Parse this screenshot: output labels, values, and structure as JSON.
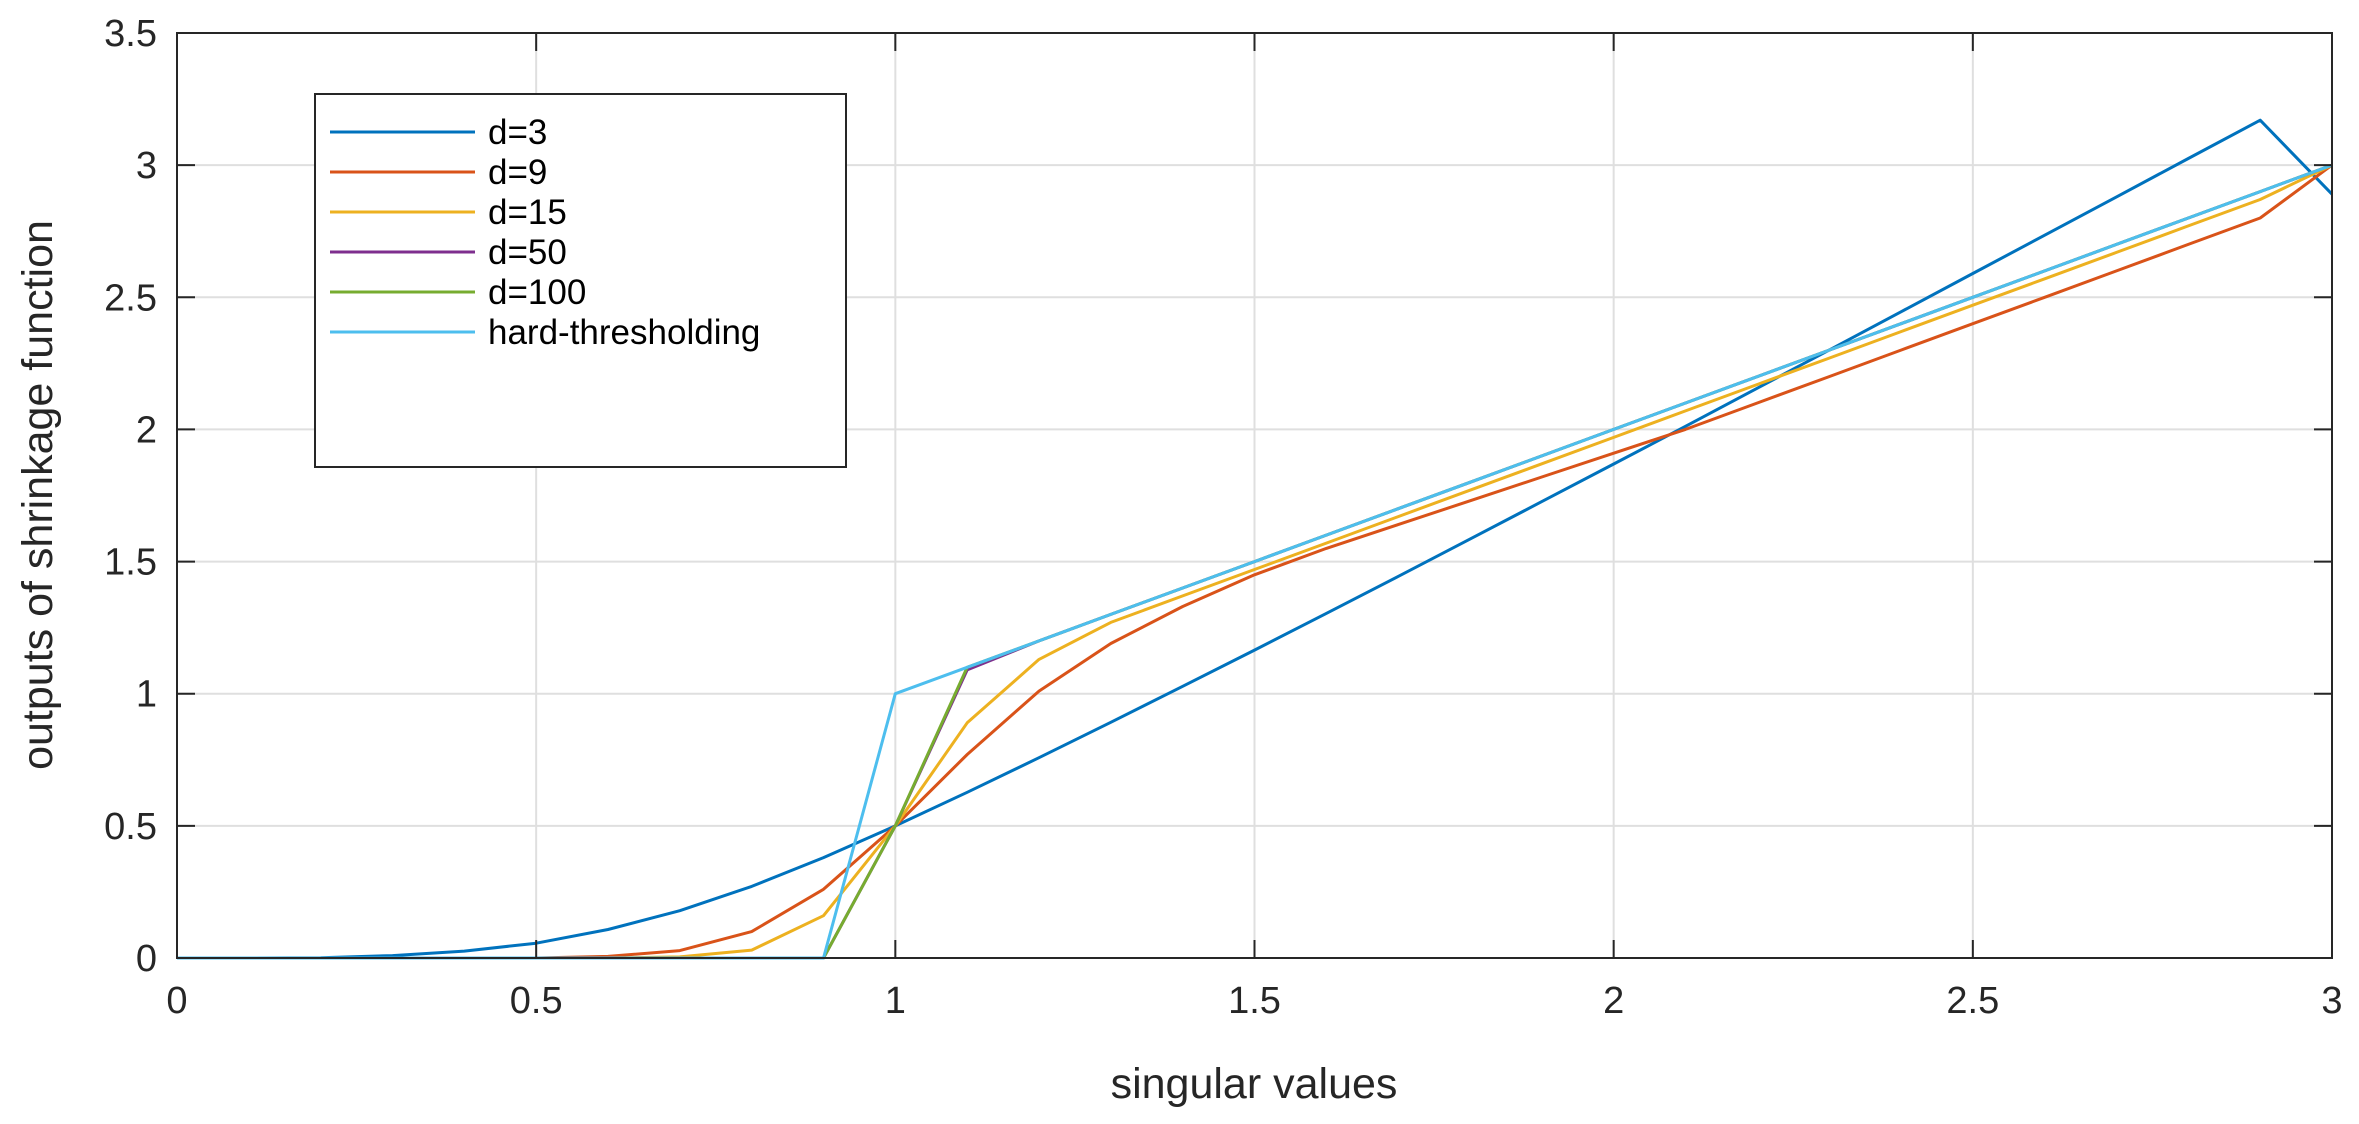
{
  "chart_data": {
    "type": "line",
    "title": "",
    "xlabel": "singular values",
    "ylabel": "outputs of shrinkage function",
    "xlim": [
      0,
      3
    ],
    "ylim": [
      0,
      3.5
    ],
    "xticks": [
      0,
      0.5,
      1,
      1.5,
      2,
      2.5,
      3
    ],
    "xtick_labels": [
      "0",
      "0.5",
      "1",
      "1.5",
      "2",
      "2.5",
      "3"
    ],
    "yticks": [
      0,
      0.5,
      1,
      1.5,
      2,
      2.5,
      3,
      3.5
    ],
    "ytick_labels": [
      "0",
      "0.5",
      "1",
      "1.5",
      "2",
      "2.5",
      "3",
      "3.5"
    ],
    "grid": true,
    "legend_position": "top-left",
    "x": [
      0,
      0.1,
      0.2,
      0.3,
      0.4,
      0.5,
      0.6,
      0.7,
      0.8,
      0.9,
      1.0,
      1.1,
      1.2,
      1.3,
      1.4,
      1.5,
      1.6,
      1.7,
      1.8,
      1.9,
      2.0,
      2.1,
      2.2,
      2.3,
      2.4,
      2.5,
      2.6,
      2.7,
      2.8,
      2.9,
      3.0
    ],
    "series": [
      {
        "name": "d=3",
        "color": "#0072bd",
        "values": [
          0,
          0,
          0.001,
          0.009,
          0.026,
          0.056,
          0.108,
          0.179,
          0.271,
          0.38,
          0.5,
          0.627,
          0.758,
          0.892,
          1.028,
          1.165,
          1.304,
          1.444,
          1.585,
          1.727,
          1.869,
          2.012,
          2.156,
          2.3,
          2.445,
          2.59,
          2.735,
          2.88,
          3.025,
          3.17,
          2.89
        ]
      },
      {
        "name": "d=9",
        "color": "#d95319",
        "values": [
          0,
          0,
          0,
          0,
          0,
          0,
          0.006,
          0.028,
          0.1,
          0.26,
          0.5,
          0.77,
          1.01,
          1.19,
          1.33,
          1.45,
          1.55,
          1.64,
          1.73,
          1.82,
          1.91,
          2.0,
          2.1,
          2.2,
          2.3,
          2.4,
          2.5,
          2.6,
          2.7,
          2.8,
          3.0
        ]
      },
      {
        "name": "d=15",
        "color": "#edb120",
        "values": [
          0,
          0,
          0,
          0,
          0,
          0,
          0,
          0.004,
          0.03,
          0.16,
          0.5,
          0.89,
          1.13,
          1.27,
          1.37,
          1.47,
          1.57,
          1.67,
          1.77,
          1.87,
          1.97,
          2.07,
          2.17,
          2.27,
          2.37,
          2.47,
          2.57,
          2.67,
          2.77,
          2.87,
          3.0
        ]
      },
      {
        "name": "d=50",
        "color": "#7e2f8e",
        "values": [
          0,
          0,
          0,
          0,
          0,
          0,
          0,
          0,
          0,
          0,
          0.5,
          1.09,
          1.2,
          1.3,
          1.4,
          1.5,
          1.6,
          1.7,
          1.8,
          1.9,
          2.0,
          2.1,
          2.2,
          2.3,
          2.4,
          2.5,
          2.6,
          2.7,
          2.8,
          2.9,
          3.0
        ]
      },
      {
        "name": "d=100",
        "color": "#77ac30",
        "values": [
          0,
          0,
          0,
          0,
          0,
          0,
          0,
          0,
          0,
          0,
          0.5,
          1.1,
          1.2,
          1.3,
          1.4,
          1.5,
          1.6,
          1.7,
          1.8,
          1.9,
          2.0,
          2.1,
          2.2,
          2.3,
          2.4,
          2.5,
          2.6,
          2.7,
          2.8,
          2.9,
          3.0
        ]
      },
      {
        "name": "hard-thresholding",
        "color": "#4dbeee",
        "values": [
          0,
          0,
          0,
          0,
          0,
          0,
          0,
          0,
          0,
          0,
          1.0,
          1.1,
          1.2,
          1.3,
          1.4,
          1.5,
          1.6,
          1.7,
          1.8,
          1.9,
          2.0,
          2.1,
          2.2,
          2.3,
          2.4,
          2.5,
          2.6,
          2.7,
          2.8,
          2.9,
          3.0
        ]
      }
    ]
  }
}
